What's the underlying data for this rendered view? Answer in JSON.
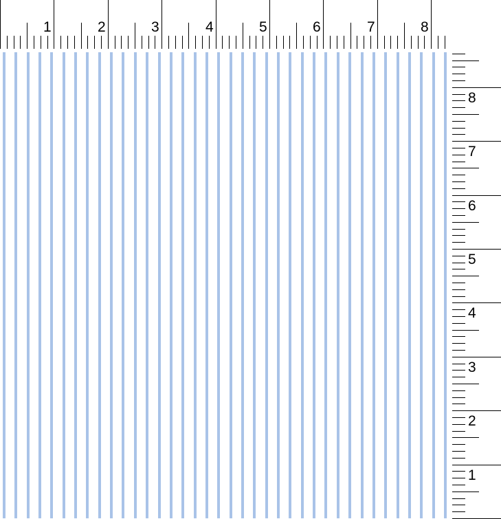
{
  "top_ruler": {
    "labels": [
      "1",
      "2",
      "3",
      "4",
      "5",
      "6",
      "7",
      "8"
    ],
    "divisions_per_unit": 8
  },
  "right_ruler": {
    "labels": [
      "1",
      "2",
      "3",
      "4",
      "5",
      "6",
      "7",
      "8"
    ],
    "divisions_per_unit": 8
  },
  "pattern": {
    "type": "vertical-stripes",
    "stripe_color": "#a9c3e8",
    "background": "#ffffff"
  }
}
